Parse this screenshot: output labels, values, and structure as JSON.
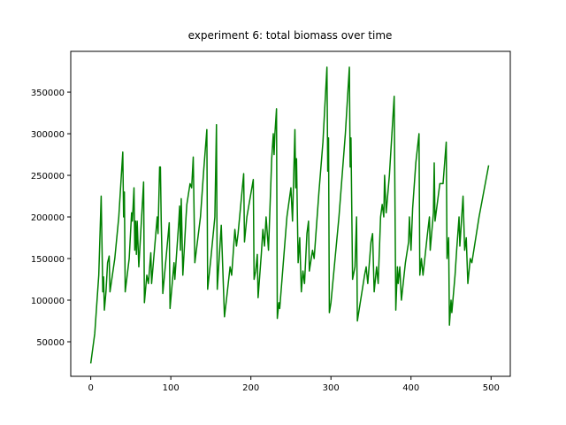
{
  "chart_data": {
    "type": "line",
    "title": "experiment 6: total biomass over time",
    "color": "green",
    "xlim": [
      -25,
      524
    ],
    "ylim": [
      8500,
      399000
    ],
    "xticks": [
      0,
      100,
      200,
      300,
      400,
      500
    ],
    "yticks": [
      50000,
      100000,
      150000,
      200000,
      250000,
      300000,
      350000
    ],
    "x": [
      0,
      5,
      10,
      13,
      15,
      16,
      17,
      19,
      21,
      23,
      24,
      30,
      35,
      40,
      41,
      42,
      43,
      48,
      51,
      52,
      54,
      55,
      56,
      57,
      58,
      60,
      66,
      67,
      70,
      72,
      75,
      76,
      83,
      84,
      86,
      87,
      88,
      90,
      94,
      98,
      99,
      104,
      105,
      110,
      111,
      112,
      113,
      114,
      115,
      119,
      120,
      124,
      126,
      128,
      130,
      137,
      141,
      145,
      146,
      150,
      155,
      157,
      158,
      163,
      167,
      170,
      174,
      176,
      180,
      182,
      184,
      191,
      192,
      195,
      203,
      204,
      206,
      208,
      209,
      213,
      215,
      217,
      219,
      222,
      226,
      228,
      229,
      230,
      232,
      233,
      235,
      236,
      245,
      250,
      252,
      255,
      256,
      257,
      259,
      261,
      263,
      265,
      267,
      270,
      272,
      273,
      277,
      279,
      285,
      290,
      295,
      296,
      297,
      298,
      300,
      310,
      318,
      323,
      324,
      325,
      327,
      330,
      332,
      333,
      342,
      344,
      346,
      350,
      352,
      354,
      357,
      359,
      362,
      364,
      366,
      367,
      369,
      373,
      379,
      381,
      383,
      384,
      386,
      388,
      393,
      397,
      398,
      400,
      402,
      406,
      410,
      411,
      413,
      415,
      420,
      423,
      424,
      428,
      429,
      430,
      436,
      440,
      444,
      445,
      447,
      448,
      450,
      451,
      455,
      457,
      460,
      461,
      465,
      467,
      469,
      471,
      474,
      476,
      485,
      497
    ],
    "values": [
      24000,
      60000,
      130000,
      225000,
      110000,
      128000,
      88000,
      110000,
      145000,
      153000,
      110000,
      150000,
      200000,
      278000,
      200000,
      230000,
      110000,
      150000,
      205000,
      195000,
      235000,
      160000,
      195000,
      155000,
      195000,
      140000,
      242000,
      97000,
      130000,
      120000,
      157000,
      120000,
      200000,
      180000,
      260000,
      260000,
      195000,
      108000,
      150000,
      193000,
      90000,
      145000,
      125000,
      195000,
      213000,
      160000,
      222000,
      178000,
      130000,
      200000,
      215000,
      240000,
      235000,
      272000,
      145000,
      200000,
      255000,
      305000,
      113000,
      150000,
      200000,
      311000,
      113000,
      190000,
      80000,
      105000,
      140000,
      130000,
      185000,
      165000,
      180000,
      252000,
      170000,
      200000,
      245000,
      125000,
      135000,
      155000,
      103000,
      155000,
      185000,
      165000,
      200000,
      160000,
      270000,
      300000,
      275000,
      300000,
      330000,
      78000,
      97000,
      90000,
      200000,
      235000,
      195000,
      305000,
      235000,
      270000,
      145000,
      175000,
      110000,
      135000,
      120000,
      180000,
      195000,
      135000,
      160000,
      150000,
      230000,
      290000,
      380000,
      255000,
      295000,
      85000,
      97000,
      200000,
      300000,
      380000,
      260000,
      295000,
      125000,
      140000,
      200000,
      75000,
      130000,
      140000,
      120000,
      170000,
      180000,
      110000,
      140000,
      120000,
      200000,
      215000,
      200000,
      250000,
      205000,
      250000,
      345000,
      88000,
      140000,
      120000,
      140000,
      100000,
      145000,
      170000,
      200000,
      160000,
      210000,
      265000,
      300000,
      130000,
      150000,
      130000,
      175000,
      200000,
      160000,
      205000,
      265000,
      195000,
      240000,
      240000,
      290000,
      150000,
      175000,
      70000,
      100000,
      85000,
      130000,
      160000,
      200000,
      165000,
      225000,
      160000,
      175000,
      120000,
      150000,
      145000,
      200000,
      262000
    ]
  }
}
